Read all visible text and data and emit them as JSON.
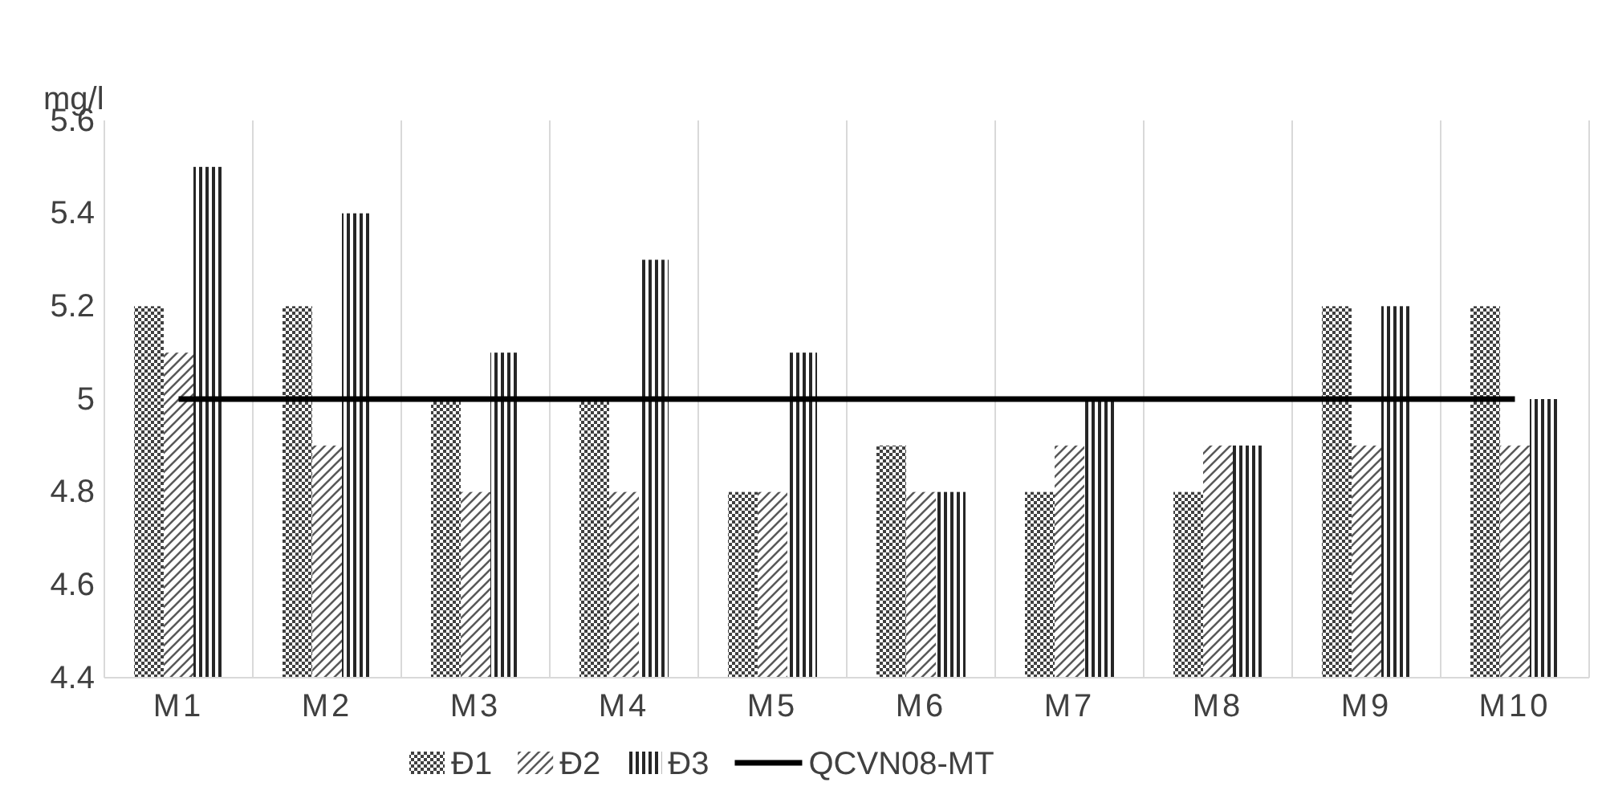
{
  "chart_data": {
    "type": "bar",
    "ylabel": "mg/l",
    "categories": [
      "M1",
      "M2",
      "M3",
      "M4",
      "M5",
      "M6",
      "M7",
      "M8",
      "M9",
      "M10"
    ],
    "series": [
      {
        "name": "Đ1",
        "color": "#404040",
        "values": [
          5.2,
          5.2,
          5.0,
          5.0,
          4.8,
          4.9,
          4.8,
          4.8,
          5.2,
          5.2
        ]
      },
      {
        "name": "Đ2",
        "color": "#595959",
        "values": [
          5.1,
          4.9,
          4.8,
          4.8,
          4.8,
          4.8,
          4.9,
          4.9,
          4.9,
          4.9
        ]
      },
      {
        "name": "Đ3",
        "color": "#262626",
        "values": [
          5.5,
          5.4,
          5.1,
          5.3,
          5.1,
          4.8,
          5.0,
          4.9,
          5.2,
          5.0
        ]
      },
      {
        "name": "QCVN08-MT",
        "type": "line",
        "color": "#000000",
        "values": [
          5,
          5,
          5,
          5,
          5,
          5,
          5,
          5,
          5,
          5
        ]
      }
    ],
    "ylim": [
      4.4,
      5.6
    ],
    "yticks": [
      4.4,
      4.6,
      4.8,
      5,
      5.2,
      5.4,
      5.6
    ],
    "grid": "x",
    "legend": "bottom"
  }
}
